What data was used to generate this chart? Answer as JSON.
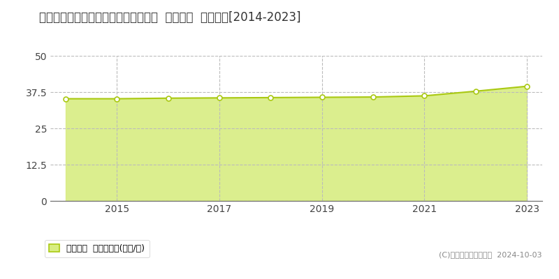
{
  "title": "茨城県つくば市学園南３丁目１９番４  基準地価  地価推移[2014-2023]",
  "years": [
    2014,
    2015,
    2016,
    2017,
    2018,
    2019,
    2020,
    2021,
    2022,
    2023
  ],
  "values": [
    35.2,
    35.2,
    35.4,
    35.5,
    35.6,
    35.7,
    35.8,
    36.2,
    37.8,
    39.5
  ],
  "ylim": [
    0,
    50
  ],
  "yticks": [
    0,
    12.5,
    25,
    37.5,
    50
  ],
  "xticks": [
    2015,
    2017,
    2019,
    2021,
    2023
  ],
  "line_color": "#aac912",
  "fill_color": "#d8ed82",
  "fill_alpha": 0.9,
  "marker_face": "white",
  "marker_size": 5,
  "background_color": "#ffffff",
  "grid_color_x": "#bbbbbb",
  "grid_color_y": "#bbbbbb",
  "legend_label": "基準地価  平均坪単価(万円/坪)",
  "copyright": "(C)土地価格ドットコム  2024-10-03",
  "title_fontsize": 12,
  "axis_fontsize": 10,
  "legend_fontsize": 9,
  "copyright_fontsize": 8
}
